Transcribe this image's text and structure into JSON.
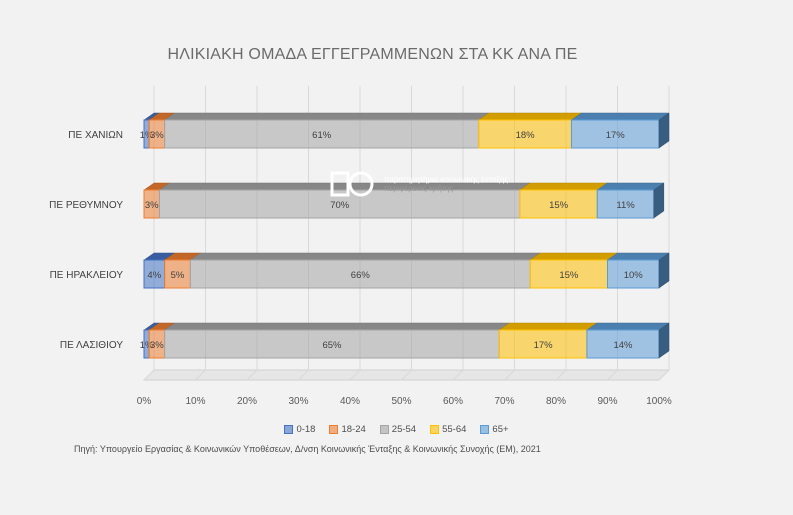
{
  "chart_data": {
    "type": "bar",
    "orientation": "horizontal",
    "stacked": "100%",
    "title": "ΗΛΙΚΙΑΚΗ ΟΜΑΔΑ ΕΓΓΕΓΡΑΜΜΕΝΩΝ ΣΤΑ ΚΚ ΑΝΑ ΠΕ",
    "categories": [
      "ΠΕ ΧΑΝΙΩΝ",
      "ΠΕ ΡΕΘΥΜΝΟΥ",
      "ΠΕ ΗΡΑΚΛΕΙΟΥ",
      "ΠΕ ΛΑΣΙΘΙΟΥ"
    ],
    "series": [
      {
        "name": "0-18",
        "color": "#4472c4",
        "values": [
          1,
          0,
          4,
          1
        ]
      },
      {
        "name": "18-24",
        "color": "#ed7d31",
        "values": [
          3,
          3,
          5,
          3
        ]
      },
      {
        "name": "25-54",
        "color": "#a5a5a5",
        "values": [
          61,
          70,
          66,
          65
        ]
      },
      {
        "name": "55-64",
        "color": "#ffc000",
        "values": [
          18,
          15,
          15,
          17
        ]
      },
      {
        "name": "65+",
        "color": "#5b9bd5",
        "values": [
          17,
          11,
          10,
          14
        ]
      }
    ],
    "data_labels": [
      [
        "1%",
        "3%",
        "61%",
        "18%",
        "17%"
      ],
      [
        "",
        "3%",
        "70%",
        "15%",
        "11%"
      ],
      [
        "4%",
        "5%",
        "66%",
        "15%",
        "10%"
      ],
      [
        "1%",
        "3%",
        "65%",
        "17%",
        "14%"
      ]
    ],
    "x_ticks": [
      "0%",
      "10%",
      "20%",
      "30%",
      "40%",
      "50%",
      "60%",
      "70%",
      "80%",
      "90%",
      "100%"
    ],
    "xlim": [
      0,
      100
    ],
    "grid": true,
    "legend_position": "bottom",
    "source": "Πηγή: Υπουργείο Εργασίας & Κοινωνικών Υποθέσεων, Δ/νση Κοινωνικής Ένταξης & Κοινωνικής Συνοχής (ΕΜ), 2021"
  },
  "logo": {
    "line1": "παρατηρητήριο κοινωνικής ένταξης",
    "line2": "περιφέρειας κρήτης"
  }
}
